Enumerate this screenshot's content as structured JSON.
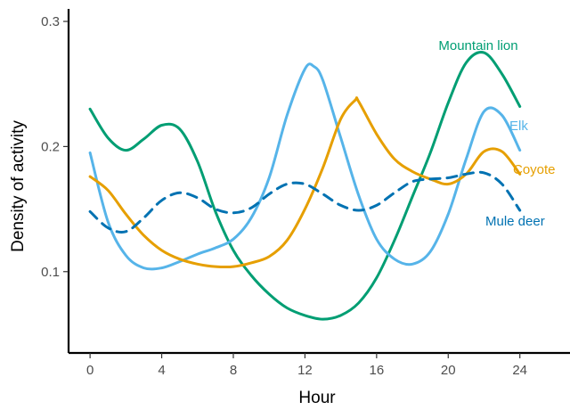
{
  "chart_data": {
    "type": "line",
    "title": "",
    "xlabel": "Hour",
    "ylabel": "Density of activity",
    "xlim": [
      -1.2,
      26.8
    ],
    "ylim": [
      0.035,
      0.31
    ],
    "xticks": [
      0,
      4,
      8,
      12,
      16,
      20,
      24
    ],
    "yticks": [
      0.1,
      0.2,
      0.3
    ],
    "ytick_labels": [
      "0.1",
      "0.2",
      "0.3"
    ],
    "grid": false,
    "legend": "none (series labelled directly at line ends)",
    "series": [
      {
        "name": "Mountain lion",
        "color": "#009E73",
        "dash": "solid",
        "points": [
          [
            0,
            0.23
          ],
          [
            1,
            0.207
          ],
          [
            2,
            0.197
          ],
          [
            3,
            0.206
          ],
          [
            4,
            0.217
          ],
          [
            5,
            0.214
          ],
          [
            6,
            0.188
          ],
          [
            7,
            0.148
          ],
          [
            8,
            0.117
          ],
          [
            9,
            0.097
          ],
          [
            10,
            0.082
          ],
          [
            11,
            0.071
          ],
          [
            12,
            0.065
          ],
          [
            13,
            0.062
          ],
          [
            14,
            0.065
          ],
          [
            15,
            0.075
          ],
          [
            16,
            0.095
          ],
          [
            17,
            0.125
          ],
          [
            18,
            0.16
          ],
          [
            19,
            0.195
          ],
          [
            20,
            0.235
          ],
          [
            21,
            0.267
          ],
          [
            22,
            0.275
          ],
          [
            23,
            0.258
          ],
          [
            24,
            0.232
          ]
        ]
      },
      {
        "name": "Elk",
        "color": "#56B4E9",
        "dash": "solid",
        "points": [
          [
            0,
            0.195
          ],
          [
            1,
            0.14
          ],
          [
            2,
            0.113
          ],
          [
            3,
            0.103
          ],
          [
            4,
            0.103
          ],
          [
            5,
            0.108
          ],
          [
            6,
            0.114
          ],
          [
            7,
            0.119
          ],
          [
            8,
            0.126
          ],
          [
            9,
            0.143
          ],
          [
            10,
            0.175
          ],
          [
            11,
            0.225
          ],
          [
            12,
            0.262
          ],
          [
            12.5,
            0.264
          ],
          [
            13,
            0.253
          ],
          [
            14,
            0.207
          ],
          [
            15,
            0.161
          ],
          [
            16,
            0.126
          ],
          [
            17,
            0.11
          ],
          [
            18,
            0.106
          ],
          [
            19,
            0.116
          ],
          [
            20,
            0.146
          ],
          [
            21,
            0.19
          ],
          [
            22,
            0.228
          ],
          [
            23,
            0.225
          ],
          [
            24,
            0.197
          ]
        ]
      },
      {
        "name": "Coyote",
        "color": "#E69F00",
        "dash": "solid",
        "points": [
          [
            0,
            0.176
          ],
          [
            1,
            0.165
          ],
          [
            2,
            0.146
          ],
          [
            3,
            0.129
          ],
          [
            4,
            0.117
          ],
          [
            5,
            0.11
          ],
          [
            6,
            0.106
          ],
          [
            7,
            0.104
          ],
          [
            8,
            0.104
          ],
          [
            9,
            0.107
          ],
          [
            10,
            0.112
          ],
          [
            11,
            0.125
          ],
          [
            12,
            0.15
          ],
          [
            13,
            0.183
          ],
          [
            14,
            0.222
          ],
          [
            14.8,
            0.237
          ],
          [
            15,
            0.236
          ],
          [
            16,
            0.21
          ],
          [
            17,
            0.19
          ],
          [
            18,
            0.18
          ],
          [
            19,
            0.174
          ],
          [
            20,
            0.17
          ],
          [
            21,
            0.178
          ],
          [
            22,
            0.196
          ],
          [
            23,
            0.196
          ],
          [
            24,
            0.178
          ]
        ]
      },
      {
        "name": "Mule deer",
        "color": "#0072B2",
        "dash": "dashed",
        "points": [
          [
            0,
            0.148
          ],
          [
            1,
            0.135
          ],
          [
            2,
            0.132
          ],
          [
            3,
            0.143
          ],
          [
            4,
            0.157
          ],
          [
            5,
            0.163
          ],
          [
            6,
            0.159
          ],
          [
            7,
            0.15
          ],
          [
            8,
            0.147
          ],
          [
            9,
            0.151
          ],
          [
            10,
            0.162
          ],
          [
            11,
            0.17
          ],
          [
            12,
            0.17
          ],
          [
            13,
            0.162
          ],
          [
            14,
            0.153
          ],
          [
            15,
            0.149
          ],
          [
            16,
            0.153
          ],
          [
            17,
            0.163
          ],
          [
            18,
            0.172
          ],
          [
            19,
            0.174
          ],
          [
            20,
            0.175
          ],
          [
            21,
            0.178
          ],
          [
            22,
            0.179
          ],
          [
            23,
            0.17
          ],
          [
            24,
            0.149
          ]
        ]
      }
    ]
  }
}
